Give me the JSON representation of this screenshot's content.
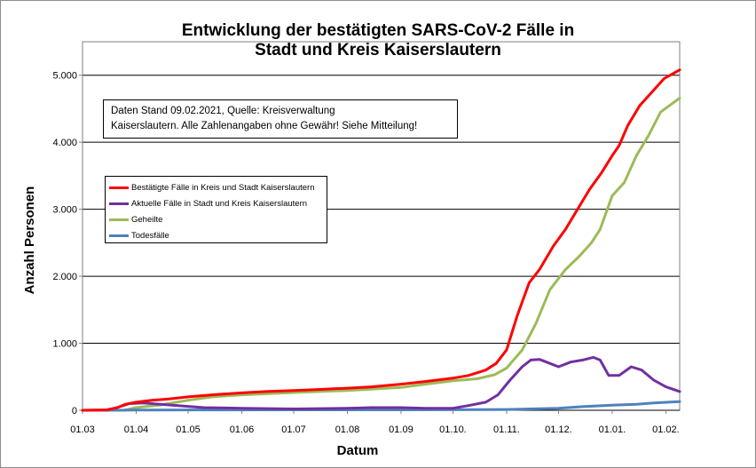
{
  "chart_data": {
    "type": "line",
    "title": "Entwicklung der bestätigten SARS-CoV-2 Fälle in Stadt und Kreis Kaiserslautern",
    "title_lines": [
      "Entwicklung der bestätigten SARS-CoV-2 Fälle in",
      "Stadt und Kreis Kaiserslautern"
    ],
    "xlabel": "Datum",
    "ylabel": "Anzahl Personen",
    "x_ticks": [
      "01.03",
      "01.04",
      "01.05",
      "01.06",
      "01.07",
      "01.08",
      "01.09",
      "01.10.",
      "01.11.",
      "01.12.",
      "01.01.",
      "01.02."
    ],
    "y_ticks": [
      "0",
      "1.000",
      "2.000",
      "3.000",
      "4.000",
      "5.000"
    ],
    "ylim": [
      0,
      5500
    ],
    "xlim": [
      "2020-03-01",
      "2021-02-09"
    ],
    "grid": "horizontal",
    "legend_position": "upper-left",
    "annotation_lines": [
      "Daten Stand 09.02.2021, Quelle: Kreisverwaltung",
      "Kaiserslautern. Alle Zahlenangaben ohne Gewähr! Siehe Mitteilung!"
    ],
    "series": [
      {
        "name": "Bestätigte Fälle in Kreis und Stadt Kaiserslautern",
        "color": "#ff0000",
        "points": [
          [
            "2020-03-01",
            0
          ],
          [
            "2020-03-15",
            5
          ],
          [
            "2020-03-21",
            40
          ],
          [
            "2020-03-26",
            90
          ],
          [
            "2020-04-01",
            120
          ],
          [
            "2020-04-10",
            150
          ],
          [
            "2020-04-20",
            170
          ],
          [
            "2020-05-01",
            200
          ],
          [
            "2020-05-15",
            230
          ],
          [
            "2020-06-01",
            260
          ],
          [
            "2020-06-15",
            280
          ],
          [
            "2020-07-01",
            295
          ],
          [
            "2020-07-15",
            310
          ],
          [
            "2020-08-01",
            330
          ],
          [
            "2020-08-15",
            350
          ],
          [
            "2020-09-01",
            390
          ],
          [
            "2020-09-15",
            430
          ],
          [
            "2020-10-01",
            480
          ],
          [
            "2020-10-10",
            520
          ],
          [
            "2020-10-20",
            600
          ],
          [
            "2020-10-26",
            700
          ],
          [
            "2020-11-01",
            900
          ],
          [
            "2020-11-07",
            1400
          ],
          [
            "2020-11-14",
            1900
          ],
          [
            "2020-11-20",
            2100
          ],
          [
            "2020-11-28",
            2450
          ],
          [
            "2020-12-05",
            2700
          ],
          [
            "2020-12-12",
            3000
          ],
          [
            "2020-12-19",
            3300
          ],
          [
            "2020-12-26",
            3550
          ],
          [
            "2021-01-01",
            3800
          ],
          [
            "2021-01-05",
            3950
          ],
          [
            "2021-01-10",
            4250
          ],
          [
            "2021-01-17",
            4550
          ],
          [
            "2021-01-24",
            4750
          ],
          [
            "2021-01-31",
            4950
          ],
          [
            "2021-02-09",
            5080
          ]
        ]
      },
      {
        "name": "Aktuelle Fälle in Stadt und Kreis Kaiserslautern",
        "color": "#7030a0",
        "points": [
          [
            "2020-03-01",
            0
          ],
          [
            "2020-03-15",
            5
          ],
          [
            "2020-03-21",
            40
          ],
          [
            "2020-03-28",
            100
          ],
          [
            "2020-04-05",
            110
          ],
          [
            "2020-04-15",
            90
          ],
          [
            "2020-04-25",
            70
          ],
          [
            "2020-05-10",
            40
          ],
          [
            "2020-06-01",
            30
          ],
          [
            "2020-07-01",
            20
          ],
          [
            "2020-08-01",
            30
          ],
          [
            "2020-08-15",
            40
          ],
          [
            "2020-09-01",
            40
          ],
          [
            "2020-09-15",
            30
          ],
          [
            "2020-10-01",
            30
          ],
          [
            "2020-10-10",
            70
          ],
          [
            "2020-10-20",
            120
          ],
          [
            "2020-10-27",
            230
          ],
          [
            "2020-11-03",
            450
          ],
          [
            "2020-11-10",
            650
          ],
          [
            "2020-11-15",
            750
          ],
          [
            "2020-11-20",
            760
          ],
          [
            "2020-11-26",
            700
          ],
          [
            "2020-12-01",
            650
          ],
          [
            "2020-12-08",
            720
          ],
          [
            "2020-12-15",
            750
          ],
          [
            "2020-12-21",
            790
          ],
          [
            "2020-12-25",
            750
          ],
          [
            "2020-12-30",
            520
          ],
          [
            "2021-01-05",
            520
          ],
          [
            "2021-01-12",
            650
          ],
          [
            "2021-01-18",
            600
          ],
          [
            "2021-01-25",
            450
          ],
          [
            "2021-02-01",
            350
          ],
          [
            "2021-02-09",
            280
          ]
        ]
      },
      {
        "name": "Geheilte",
        "color": "#9bbb59",
        "points": [
          [
            "2020-03-01",
            0
          ],
          [
            "2020-03-25",
            0
          ],
          [
            "2020-04-01",
            40
          ],
          [
            "2020-04-15",
            80
          ],
          [
            "2020-05-01",
            150
          ],
          [
            "2020-05-15",
            200
          ],
          [
            "2020-06-01",
            230
          ],
          [
            "2020-07-01",
            265
          ],
          [
            "2020-08-01",
            295
          ],
          [
            "2020-09-01",
            340
          ],
          [
            "2020-09-15",
            390
          ],
          [
            "2020-10-01",
            440
          ],
          [
            "2020-10-15",
            470
          ],
          [
            "2020-10-25",
            530
          ],
          [
            "2020-11-01",
            630
          ],
          [
            "2020-11-10",
            900
          ],
          [
            "2020-11-18",
            1300
          ],
          [
            "2020-11-26",
            1800
          ],
          [
            "2020-12-05",
            2100
          ],
          [
            "2020-12-13",
            2300
          ],
          [
            "2020-12-20",
            2500
          ],
          [
            "2020-12-25",
            2700
          ],
          [
            "2021-01-01",
            3200
          ],
          [
            "2021-01-08",
            3400
          ],
          [
            "2021-01-15",
            3800
          ],
          [
            "2021-01-22",
            4100
          ],
          [
            "2021-01-29",
            4450
          ],
          [
            "2021-02-09",
            4660
          ]
        ]
      },
      {
        "name": "Todesfälle",
        "color": "#4f81bd",
        "points": [
          [
            "2020-03-01",
            0
          ],
          [
            "2020-03-20",
            0
          ],
          [
            "2020-04-01",
            3
          ],
          [
            "2020-05-01",
            5
          ],
          [
            "2020-07-01",
            6
          ],
          [
            "2020-09-01",
            7
          ],
          [
            "2020-10-01",
            8
          ],
          [
            "2020-11-01",
            12
          ],
          [
            "2020-12-01",
            30
          ],
          [
            "2020-12-15",
            55
          ],
          [
            "2021-01-01",
            75
          ],
          [
            "2021-01-15",
            90
          ],
          [
            "2021-01-25",
            110
          ],
          [
            "2021-02-09",
            130
          ]
        ]
      }
    ]
  }
}
